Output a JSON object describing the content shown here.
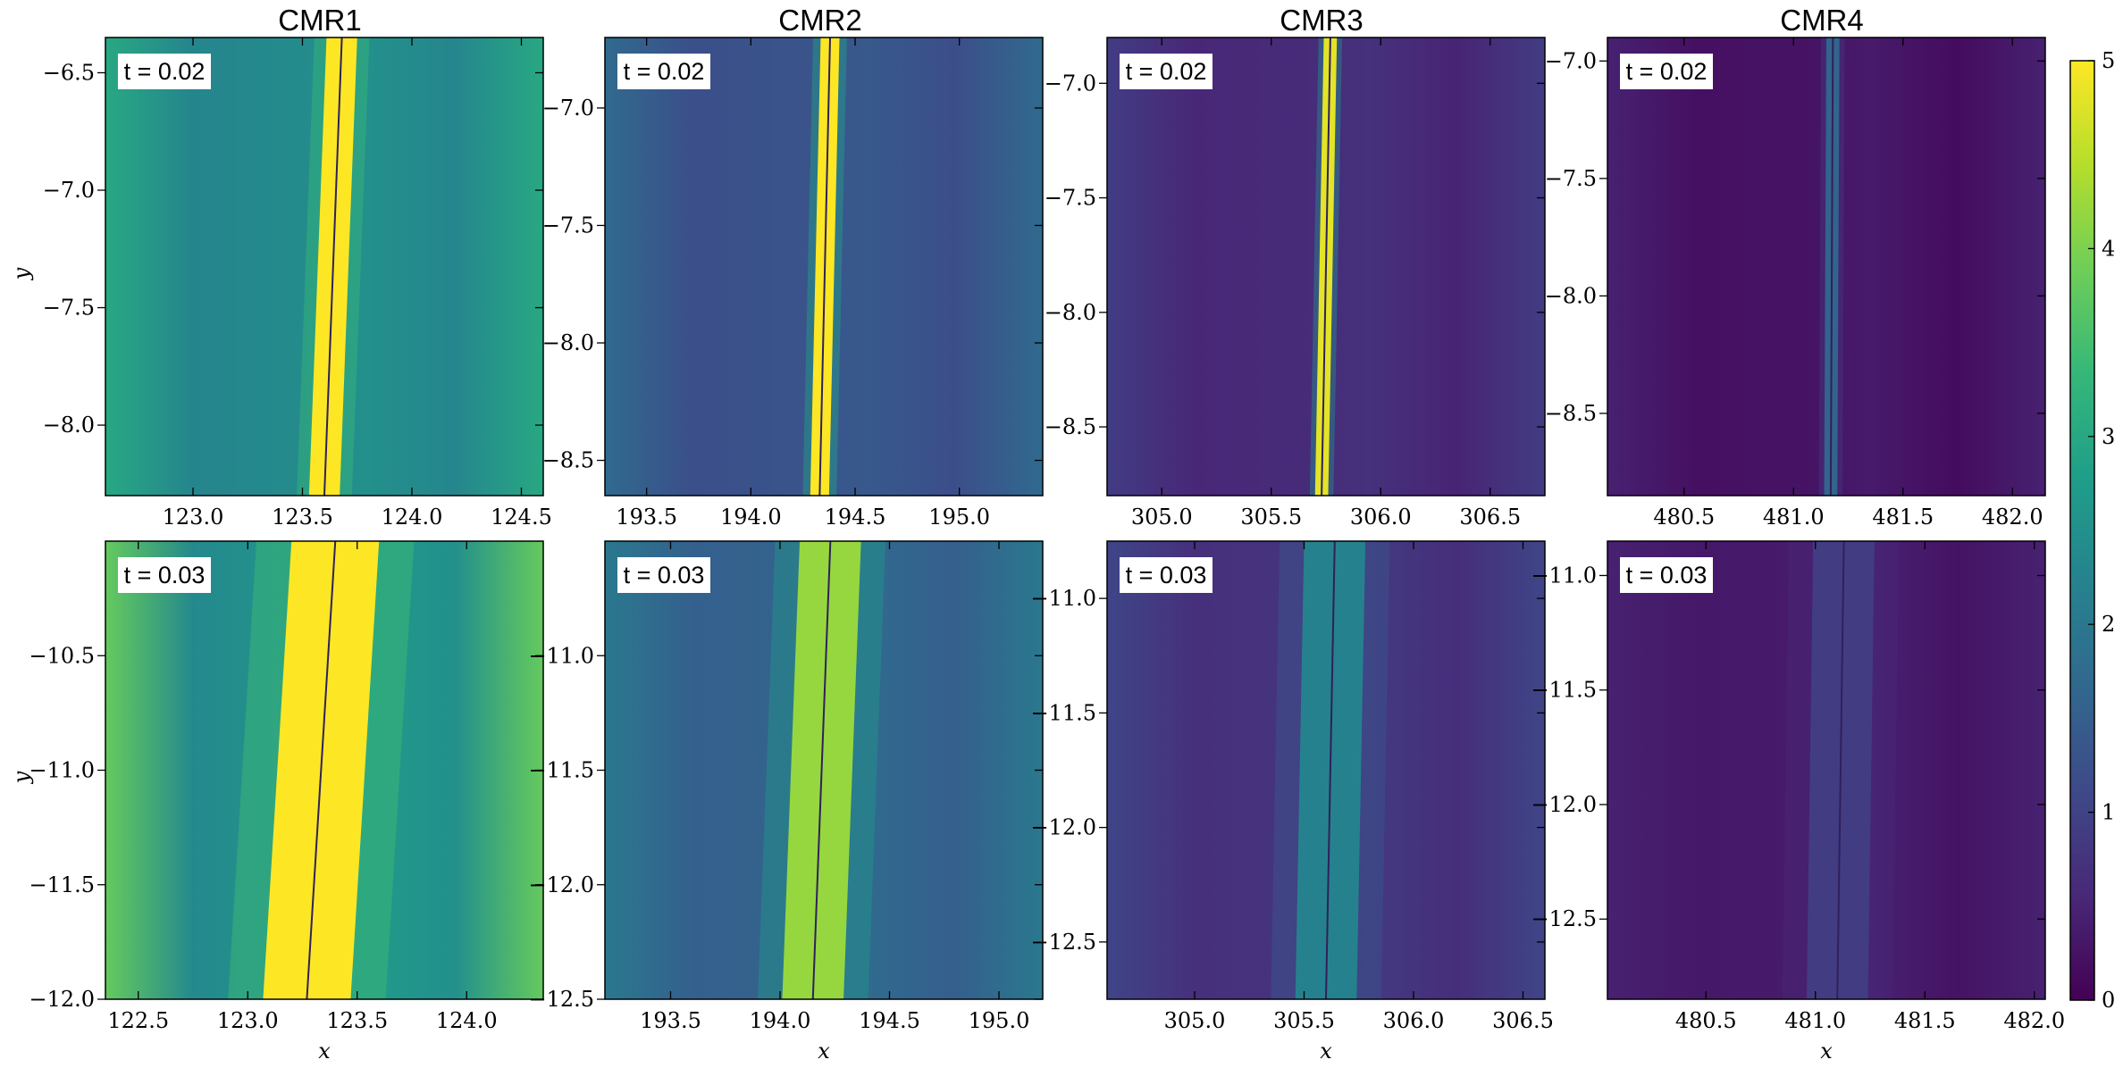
{
  "colors": {
    "viridis": [
      "#440154",
      "#482878",
      "#3e4989",
      "#31688e",
      "#26828e",
      "#1f9e89",
      "#35b779",
      "#6ece58",
      "#b5de2b",
      "#fde725"
    ],
    "outline": "#000000",
    "label_box": "#ffffff"
  },
  "chart_data": {
    "type": "heatmap",
    "column_titles": [
      "CMR1",
      "CMR2",
      "CMR3",
      "CMR4"
    ],
    "xlabel": "x",
    "ylabel": "y",
    "colorbar": {
      "range": [
        0,
        5
      ],
      "ticks": [
        "0",
        "1",
        "2",
        "3",
        "4",
        "5"
      ]
    },
    "panels": [
      {
        "row": 0,
        "col": 0,
        "time_label": "t = 0.02",
        "xlim": [
          122.6,
          124.6
        ],
        "ylim": [
          -8.3,
          -6.35
        ],
        "xticks": [
          123.0,
          123.5,
          124.0,
          124.5
        ],
        "xtick_labels": [
          "123.0",
          "123.5",
          "124.0",
          "124.5"
        ],
        "yticks": [
          -8.0,
          -7.5,
          -7.0,
          -6.5
        ],
        "ytick_labels": [
          "−8.0",
          "−7.5",
          "−7.0",
          "−6.5"
        ],
        "background": 2.4,
        "edge_boost": 0.6,
        "band_value": 5,
        "band_center_bottom": 123.6,
        "band_center_top": 123.68,
        "band_width": 0.07,
        "ytick_side": "left",
        "show_ylabel": true,
        "show_xlabel": false
      },
      {
        "row": 0,
        "col": 1,
        "time_label": "t = 0.02",
        "xlim": [
          193.3,
          195.4
        ],
        "ylim": [
          -8.65,
          -6.7
        ],
        "xticks": [
          193.5,
          194.0,
          194.5,
          195.0
        ],
        "xtick_labels": [
          "193.5",
          "194.0",
          "194.5",
          "195.0"
        ],
        "yticks": [
          -8.5,
          -8.0,
          -7.5,
          -7.0
        ],
        "ytick_labels": [
          "−8.5",
          "−8.0",
          "−7.5",
          "−7.0"
        ],
        "background": 1.3,
        "edge_boost": 0.4,
        "band_value": 5,
        "band_center_bottom": 194.33,
        "band_center_top": 194.38,
        "band_width": 0.045,
        "ytick_side": "left",
        "show_ylabel": false,
        "show_xlabel": false
      },
      {
        "row": 0,
        "col": 2,
        "time_label": "t = 0.02",
        "xlim": [
          304.75,
          306.75
        ],
        "ylim": [
          -8.8,
          -6.8
        ],
        "xticks": [
          305.0,
          305.5,
          306.0,
          306.5
        ],
        "xtick_labels": [
          "305.0",
          "305.5",
          "306.0",
          "306.5"
        ],
        "yticks": [
          -8.5,
          -8.0,
          -7.5,
          -7.0
        ],
        "ytick_labels": [
          "−8.5",
          "−8.0",
          "−7.5",
          "−7.0"
        ],
        "background": 0.6,
        "edge_boost": 0.3,
        "band_value": 4.8,
        "band_center_bottom": 305.73,
        "band_center_top": 305.77,
        "band_width": 0.03,
        "ytick_side": "left",
        "show_ylabel": false,
        "show_xlabel": false
      },
      {
        "row": 0,
        "col": 3,
        "time_label": "t = 0.02",
        "xlim": [
          480.15,
          482.15
        ],
        "ylim": [
          -8.85,
          -6.9
        ],
        "xticks": [
          480.5,
          481.0,
          481.5,
          482.0
        ],
        "xtick_labels": [
          "480.5",
          "481.0",
          "481.5",
          "482.0"
        ],
        "yticks": [
          -8.5,
          -8.0,
          -7.5,
          -7.0
        ],
        "ytick_labels": [
          "−8.5",
          "−8.0",
          "−7.5",
          "−7.0"
        ],
        "background": 0.25,
        "edge_boost": 0.2,
        "band_value": 1.6,
        "band_center_bottom": 481.17,
        "band_center_top": 481.18,
        "band_width": 0.03,
        "ytick_side": "left",
        "show_ylabel": false,
        "show_xlabel": false
      },
      {
        "row": 1,
        "col": 0,
        "time_label": "t = 0.03",
        "xlim": [
          122.35,
          124.35
        ],
        "ylim": [
          -12.0,
          -10.0
        ],
        "xticks": [
          122.5,
          123.0,
          123.5,
          124.0
        ],
        "xtick_labels": [
          "122.5",
          "123.0",
          "123.5",
          "124.0"
        ],
        "yticks": [
          -12.0,
          -11.5,
          -11.0,
          -10.5
        ],
        "ytick_labels": [
          "−12.0",
          "−11.5",
          "−11.0",
          "−10.5"
        ],
        "background": 2.6,
        "edge_boost": 1.2,
        "band_value": 5,
        "band_center_bottom": 123.27,
        "band_center_top": 123.4,
        "band_width": 0.2,
        "ytick_side": "left",
        "show_ylabel": true,
        "show_xlabel": true
      },
      {
        "row": 1,
        "col": 1,
        "time_label": "t = 0.03",
        "xlim": [
          193.2,
          195.2
        ],
        "ylim": [
          -12.5,
          -10.5
        ],
        "xticks": [
          193.5,
          194.0,
          194.5,
          195.0
        ],
        "xtick_labels": [
          "193.5",
          "194.0",
          "194.5",
          "195.0"
        ],
        "yticks": [
          -12.5,
          -12.0,
          -11.5,
          -11.0
        ],
        "ytick_labels": [
          "−12.5",
          "−12.0",
          "−11.5",
          "−11.0"
        ],
        "background": 1.6,
        "edge_boost": 0.4,
        "band_value": 4.2,
        "band_center_bottom": 194.15,
        "band_center_top": 194.23,
        "band_width": 0.14,
        "ytick_side": "both",
        "show_ylabel": false,
        "show_xlabel": true
      },
      {
        "row": 1,
        "col": 2,
        "time_label": "t = 0.03",
        "xlim": [
          304.6,
          306.6
        ],
        "ylim": [
          -12.75,
          -10.75
        ],
        "xticks": [
          305.0,
          305.5,
          306.0,
          306.5
        ],
        "xtick_labels": [
          "305.0",
          "305.5",
          "306.0",
          "306.5"
        ],
        "yticks": [
          -12.5,
          -12.0,
          -11.5,
          -11.0
        ],
        "ytick_labels": [
          "−12.5",
          "−12.0",
          "−11.5",
          "−11.0"
        ],
        "background": 0.75,
        "edge_boost": 0.3,
        "band_value": 2.2,
        "band_center_bottom": 305.6,
        "band_center_top": 305.64,
        "band_width": 0.14,
        "ytick_side": "both",
        "show_ylabel": false,
        "show_xlabel": true
      },
      {
        "row": 1,
        "col": 3,
        "time_label": "t = 0.03",
        "xlim": [
          480.05,
          482.05
        ],
        "ylim": [
          -12.85,
          -10.85
        ],
        "xticks": [
          480.5,
          481.0,
          481.5,
          482.0
        ],
        "xtick_labels": [
          "480.5",
          "481.0",
          "481.5",
          "482.0"
        ],
        "yticks": [
          -12.5,
          -12.0,
          -11.5,
          -11.0
        ],
        "ytick_labels": [
          "−12.5",
          "−12.0",
          "−11.5",
          "−11.0"
        ],
        "background": 0.35,
        "edge_boost": 0.1,
        "band_value": 0.9,
        "band_center_bottom": 481.1,
        "band_center_top": 481.13,
        "band_width": 0.14,
        "ytick_side": "both",
        "show_ylabel": false,
        "show_xlabel": true
      }
    ]
  }
}
